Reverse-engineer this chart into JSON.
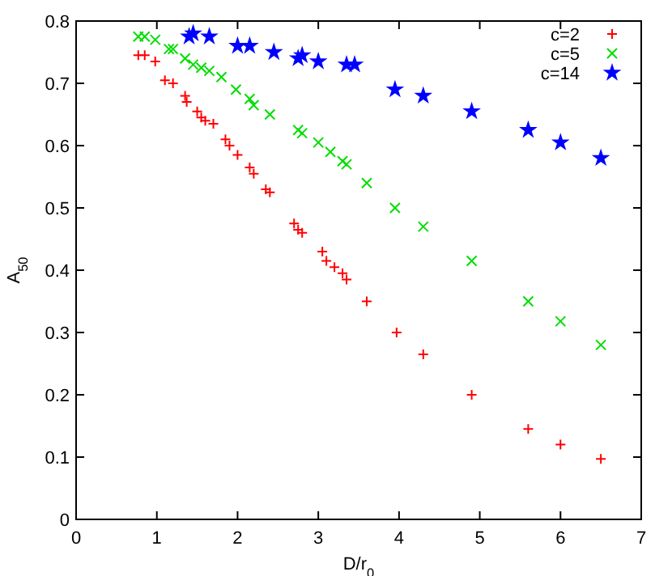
{
  "chart_data": {
    "type": "scatter",
    "xlabel": "D/r$_{0}$",
    "ylabel": "A$_{50}$",
    "xlim": [
      0,
      7
    ],
    "ylim": [
      0,
      0.8
    ],
    "xticks": [
      0,
      1,
      2,
      3,
      4,
      5,
      6,
      7
    ],
    "yticks": [
      0,
      0.1,
      0.2,
      0.3,
      0.4,
      0.5,
      0.6,
      0.7,
      0.8
    ],
    "grid": false,
    "legend": "top right",
    "series": [
      {
        "name": "c=2",
        "color": "#ff0000",
        "marker": "cross",
        "x": [
          0.77,
          0.85,
          0.98,
          1.1,
          1.2,
          1.35,
          1.37,
          1.5,
          1.55,
          1.6,
          1.7,
          1.85,
          1.9,
          2.0,
          2.15,
          2.2,
          2.35,
          2.4,
          2.7,
          2.75,
          2.8,
          3.05,
          3.1,
          3.2,
          3.3,
          3.35,
          3.6,
          3.97,
          4.3,
          4.9,
          5.6,
          6.0,
          6.5
        ],
        "values": [
          0.745,
          0.745,
          0.735,
          0.705,
          0.7,
          0.68,
          0.67,
          0.655,
          0.645,
          0.64,
          0.635,
          0.61,
          0.6,
          0.585,
          0.565,
          0.555,
          0.53,
          0.525,
          0.475,
          0.465,
          0.46,
          0.43,
          0.415,
          0.405,
          0.395,
          0.385,
          0.35,
          0.3,
          0.265,
          0.2,
          0.145,
          0.12,
          0.097
        ]
      },
      {
        "name": "c=5",
        "color": "#00dd00",
        "marker": "x",
        "x": [
          0.77,
          0.85,
          0.98,
          1.15,
          1.2,
          1.35,
          1.45,
          1.55,
          1.65,
          1.8,
          1.98,
          2.15,
          2.2,
          2.4,
          2.75,
          2.8,
          3.0,
          3.15,
          3.3,
          3.35,
          3.6,
          3.95,
          4.3,
          4.9,
          5.6,
          6.0,
          6.5
        ],
        "values": [
          0.775,
          0.775,
          0.77,
          0.755,
          0.755,
          0.74,
          0.73,
          0.725,
          0.72,
          0.71,
          0.69,
          0.675,
          0.665,
          0.65,
          0.625,
          0.62,
          0.605,
          0.59,
          0.575,
          0.57,
          0.54,
          0.5,
          0.47,
          0.415,
          0.35,
          0.318,
          0.28
        ]
      },
      {
        "name": "c=14",
        "color": "#0000ff",
        "marker": "star",
        "x": [
          1.4,
          1.45,
          1.65,
          2.0,
          2.15,
          2.45,
          2.75,
          2.8,
          3.0,
          3.35,
          3.45,
          3.95,
          4.3,
          4.9,
          5.6,
          6.0,
          6.5
        ],
        "values": [
          0.775,
          0.78,
          0.775,
          0.76,
          0.76,
          0.75,
          0.74,
          0.745,
          0.735,
          0.73,
          0.73,
          0.69,
          0.68,
          0.655,
          0.625,
          0.605,
          0.58
        ]
      }
    ]
  }
}
